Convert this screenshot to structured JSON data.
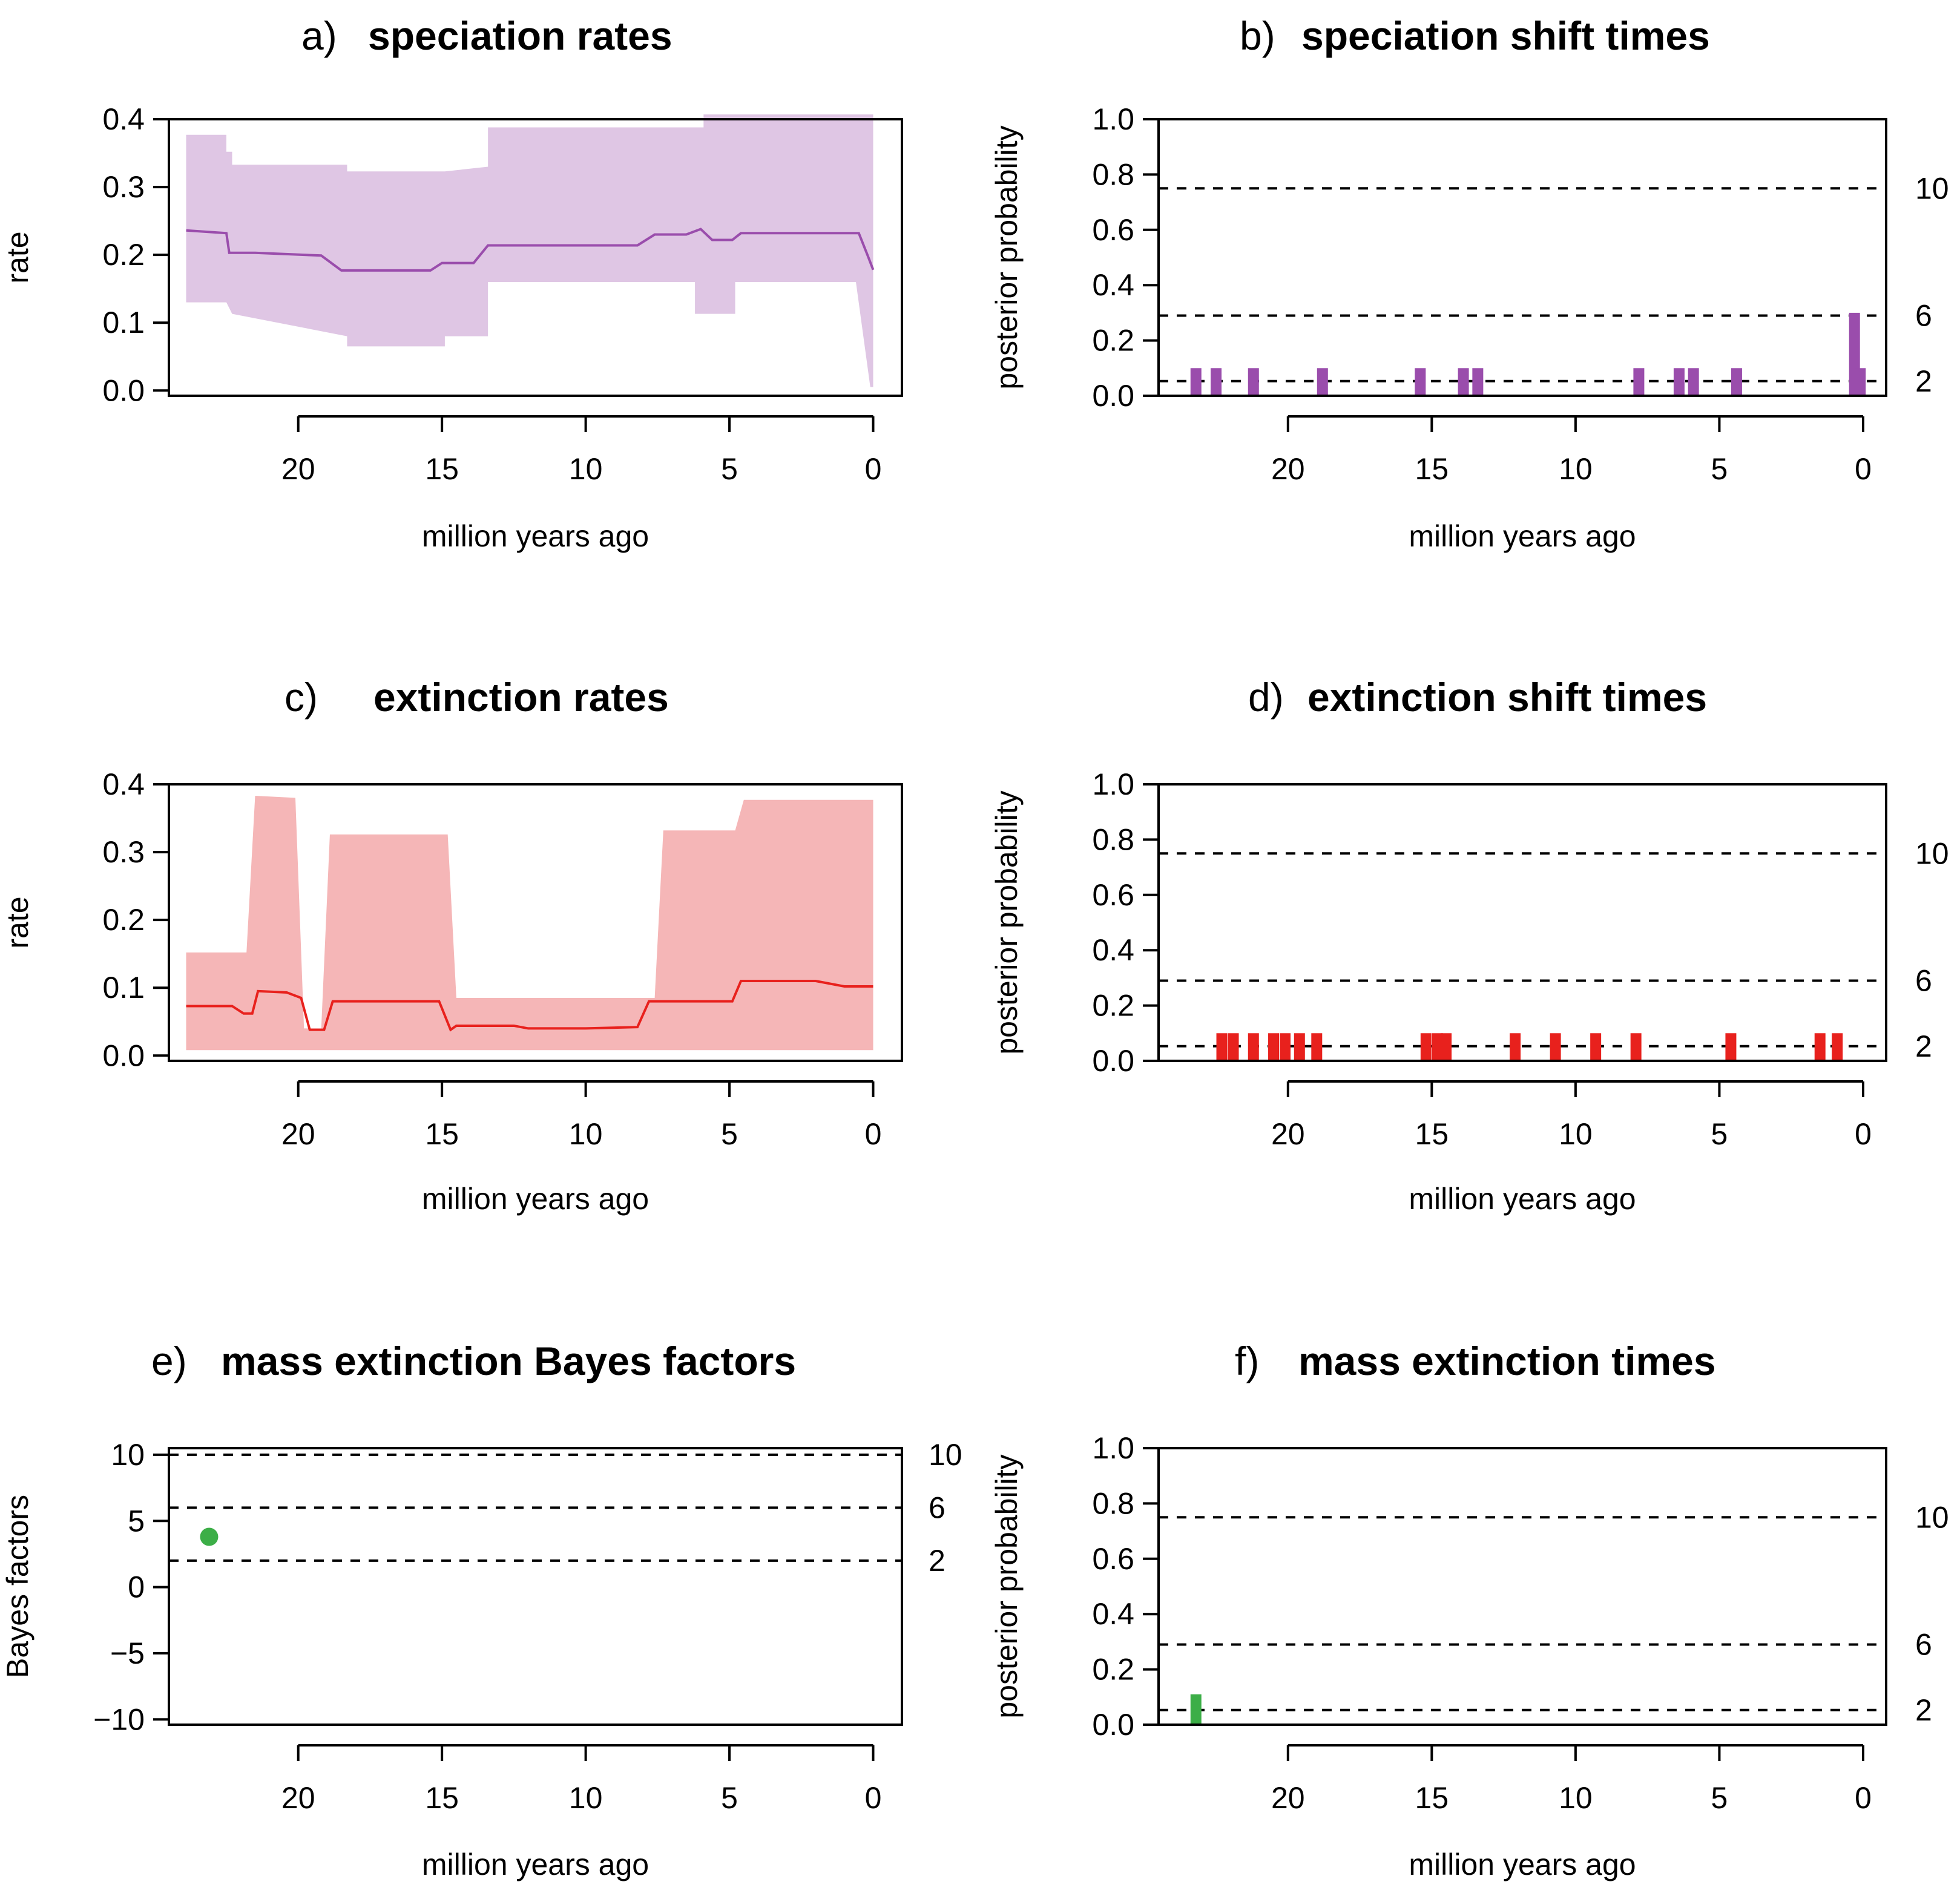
{
  "chart_data": [
    {
      "id": "a",
      "type": "area",
      "letter": "a)",
      "title": "speciation rates",
      "xlabel": "million years ago",
      "ylabel": "rate",
      "xlim": [
        24.5,
        -1
      ],
      "ylim": [
        -0.0078,
        0.4
      ],
      "xticks": [
        20,
        15,
        10,
        5,
        0
      ],
      "yticks": [
        "0.0",
        "0.1",
        "0.2",
        "0.3",
        "0.4"
      ],
      "yticks_values": [
        0,
        0.1,
        0.2,
        0.3,
        0.4
      ],
      "color": "#9a4dac",
      "band_color": "#dfc6e4",
      "band": {
        "x": [
          23.9,
          22.5,
          22.5,
          22.3,
          22.3,
          18.3,
          18.3,
          14.9,
          14.9,
          13.4,
          13.4,
          5.9,
          5.9,
          6.2,
          6.2,
          4.8,
          4.8,
          0.0
        ],
        "upper": [
          0.377,
          0.377,
          0.352,
          0.352,
          0.333,
          0.333,
          0.323,
          0.323,
          0.323,
          0.33,
          0.388,
          0.388,
          0.407,
          0.407,
          0.407,
          0.407,
          0.407,
          0.407
        ],
        "lower": [
          0.13,
          0.13,
          0.13,
          0.113,
          0.113,
          0.08,
          0.065,
          0.065,
          0.08,
          0.08,
          0.16,
          0.16,
          0.165,
          0.165,
          0.113,
          0.113,
          0.16,
          0.16
        ]
      },
      "band_tail_lower": [
        [
          0.6,
          0.16
        ],
        [
          0.1,
          0.005
        ],
        [
          0.0,
          0.005
        ]
      ],
      "line": {
        "x": [
          23.9,
          22.5,
          22.4,
          21.5,
          19.2,
          18.5,
          15.4,
          15.0,
          13.9,
          13.4,
          8.2,
          7.6,
          6.5,
          6.0,
          5.6,
          4.9,
          4.6,
          0.5,
          0.2,
          0.0
        ],
        "y": [
          0.236,
          0.232,
          0.203,
          0.203,
          0.199,
          0.177,
          0.177,
          0.188,
          0.188,
          0.214,
          0.214,
          0.23,
          0.23,
          0.238,
          0.222,
          0.222,
          0.232,
          0.232,
          0.2,
          0.178
        ]
      }
    },
    {
      "id": "b",
      "type": "bar",
      "letter": "b)",
      "title": "speciation shift times",
      "xlabel": "million years ago",
      "ylabel": "posterior probability",
      "xlim": [
        24.5,
        -0.8
      ],
      "ylim": [
        0,
        1
      ],
      "xticks": [
        20,
        15,
        10,
        5,
        0
      ],
      "yticks": [
        "0.0",
        "0.2",
        "0.4",
        "0.6",
        "0.8",
        "1.0"
      ],
      "yticks_values": [
        0,
        0.2,
        0.4,
        0.6,
        0.8,
        1.0
      ],
      "right_labels": [
        "10",
        "6",
        "2"
      ],
      "threshold_values": [
        0.75,
        0.29,
        0.053
      ],
      "color": "#9a4dac",
      "bars": {
        "x": [
          23.2,
          22.5,
          21.2,
          18.8,
          15.4,
          13.9,
          13.4,
          7.8,
          6.4,
          5.9,
          4.4,
          0.3,
          0.1
        ],
        "values": [
          0.1,
          0.1,
          0.1,
          0.1,
          0.1,
          0.1,
          0.1,
          0.1,
          0.1,
          0.1,
          0.1,
          0.3,
          0.1
        ]
      }
    },
    {
      "id": "c",
      "type": "area",
      "letter": "c)",
      "title": "extinction rates",
      "xlabel": "million years ago",
      "ylabel": "rate",
      "xlim": [
        24.5,
        -1
      ],
      "ylim": [
        -0.0078,
        0.4
      ],
      "xticks": [
        20,
        15,
        10,
        5,
        0
      ],
      "yticks": [
        "0.0",
        "0.1",
        "0.2",
        "0.3",
        "0.4"
      ],
      "yticks_values": [
        0,
        0.1,
        0.2,
        0.3,
        0.4
      ],
      "color": "#e8211d",
      "band_color": "#f5b6b7",
      "band": {
        "x": [
          23.9,
          21.8,
          21.5,
          20.1,
          19.8,
          19.2,
          18.9,
          14.8,
          14.5,
          7.6,
          7.3,
          4.8,
          4.5,
          0.0
        ],
        "upper": [
          0.152,
          0.152,
          0.383,
          0.38,
          0.04,
          0.04,
          0.326,
          0.326,
          0.085,
          0.085,
          0.332,
          0.332,
          0.377,
          0.377
        ],
        "lower": [
          0.008,
          0.008,
          0.008,
          0.008,
          0.008,
          0.008,
          0.008,
          0.008,
          0.008,
          0.008,
          0.008,
          0.008,
          0.008,
          0.008
        ]
      },
      "line": {
        "x": [
          23.9,
          22.3,
          21.9,
          21.6,
          21.4,
          20.4,
          19.9,
          19.6,
          19.1,
          18.8,
          15.1,
          14.7,
          14.5,
          12.5,
          12.0,
          10.0,
          8.2,
          7.8,
          4.9,
          4.6,
          2.0,
          1.0,
          0.0
        ],
        "y": [
          0.073,
          0.073,
          0.062,
          0.062,
          0.095,
          0.093,
          0.085,
          0.038,
          0.038,
          0.08,
          0.08,
          0.038,
          0.044,
          0.044,
          0.04,
          0.04,
          0.042,
          0.08,
          0.08,
          0.11,
          0.11,
          0.102,
          0.102
        ]
      }
    },
    {
      "id": "d",
      "type": "bar",
      "letter": "d)",
      "title": "extinction shift times",
      "xlabel": "million years ago",
      "ylabel": "posterior probability",
      "xlim": [
        24.5,
        -0.8
      ],
      "ylim": [
        0,
        1
      ],
      "xticks": [
        20,
        15,
        10,
        5,
        0
      ],
      "yticks": [
        "0.0",
        "0.2",
        "0.4",
        "0.6",
        "0.8",
        "1.0"
      ],
      "yticks_values": [
        0,
        0.2,
        0.4,
        0.6,
        0.8,
        1.0
      ],
      "right_labels": [
        "10",
        "6",
        "2"
      ],
      "threshold_values": [
        0.75,
        0.29,
        0.053
      ],
      "color": "#e8211d",
      "bars": {
        "x": [
          22.3,
          21.9,
          21.2,
          20.5,
          20.1,
          19.6,
          19.0,
          15.2,
          14.8,
          14.5,
          12.1,
          10.7,
          9.3,
          7.9,
          4.6,
          1.5,
          0.9
        ],
        "values": [
          0.1,
          0.1,
          0.1,
          0.1,
          0.1,
          0.1,
          0.1,
          0.1,
          0.1,
          0.1,
          0.1,
          0.1,
          0.1,
          0.1,
          0.1,
          0.1,
          0.1
        ]
      }
    },
    {
      "id": "e",
      "type": "scatter",
      "letter": "e)",
      "title": "mass extinction Bayes factors",
      "xlabel": "million years ago",
      "ylabel": "Bayes factors",
      "xlim": [
        24.5,
        -1
      ],
      "ylim": [
        -10.4,
        10.5
      ],
      "xticks": [
        20,
        15,
        10,
        5,
        0
      ],
      "yticks": [
        "10",
        "5",
        "0",
        "−5",
        "−10"
      ],
      "yticks_values": [
        10,
        5,
        0,
        -5,
        -10
      ],
      "right_labels": [
        "10",
        "6",
        "2"
      ],
      "threshold_values": [
        10,
        6,
        2
      ],
      "color": "#3cae47",
      "points": {
        "x": [
          23.1
        ],
        "y": [
          3.8
        ]
      }
    },
    {
      "id": "f",
      "type": "bar",
      "letter": "f)",
      "title": "mass extinction times",
      "xlabel": "million years ago",
      "ylabel": "posterior probability",
      "xlim": [
        24.5,
        -0.8
      ],
      "ylim": [
        0,
        1
      ],
      "xticks": [
        20,
        15,
        10,
        5,
        0
      ],
      "yticks": [
        "0.0",
        "0.2",
        "0.4",
        "0.6",
        "0.8",
        "1.0"
      ],
      "yticks_values": [
        0,
        0.2,
        0.4,
        0.6,
        0.8,
        1.0
      ],
      "right_labels": [
        "10",
        "6",
        "2"
      ],
      "threshold_values": [
        0.75,
        0.29,
        0.053
      ],
      "color": "#3cae47",
      "bars": {
        "x": [
          23.2
        ],
        "values": [
          0.11
        ]
      }
    }
  ]
}
